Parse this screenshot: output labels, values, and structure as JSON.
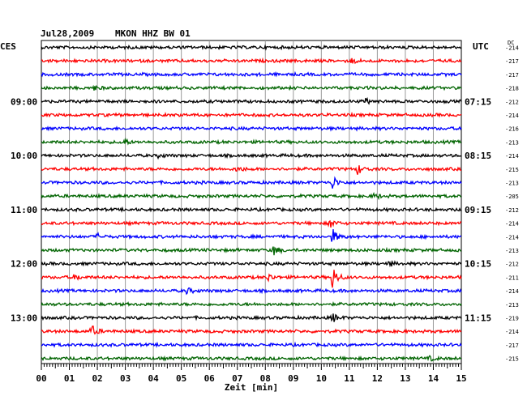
{
  "header": {
    "date": "Jul28,2009",
    "station": "MKON HHZ BW 01",
    "left_tz": "CES",
    "right_tz": "UTC",
    "dc_label": "DC"
  },
  "chart_data": {
    "type": "line",
    "title": "Jul28,2009   MKON HHZ BW 01",
    "xlabel": "Zeit [min]",
    "x_ticks": [
      "00",
      "01",
      "02",
      "03",
      "04",
      "05",
      "06",
      "07",
      "08",
      "09",
      "10",
      "11",
      "12",
      "13",
      "14",
      "15"
    ],
    "xlim": [
      0,
      15
    ],
    "grid": true,
    "trace_colors": [
      "#000000",
      "#ff0000",
      "#0000ff",
      "#006400"
    ],
    "left_time_labels": [
      {
        "row": 4,
        "text": "09:00"
      },
      {
        "row": 8,
        "text": "10:00"
      },
      {
        "row": 12,
        "text": "11:00"
      },
      {
        "row": 16,
        "text": "12:00"
      },
      {
        "row": 20,
        "text": "13:00"
      }
    ],
    "right_time_labels": [
      {
        "row": 4,
        "text": "07:15"
      },
      {
        "row": 8,
        "text": "08:15"
      },
      {
        "row": 12,
        "text": "09:15"
      },
      {
        "row": 16,
        "text": "10:15"
      },
      {
        "row": 20,
        "text": "11:15"
      }
    ],
    "dc_offsets": [
      -214,
      -217,
      -217,
      -218,
      -212,
      -214,
      -216,
      -213,
      -214,
      -215,
      -213,
      -205,
      -212,
      -214,
      -214,
      -213,
      -212,
      -211,
      -214,
      -213,
      -219,
      -214,
      -217,
      -215
    ],
    "events": [
      {
        "row": 1,
        "minute": 11.1,
        "amp": 0.5
      },
      {
        "row": 3,
        "minute": 1.9,
        "amp": 0.4
      },
      {
        "row": 4,
        "minute": 11.6,
        "amp": 0.5
      },
      {
        "row": 7,
        "minute": 2.9,
        "amp": 0.9
      },
      {
        "row": 8,
        "minute": 4.2,
        "amp": 0.4
      },
      {
        "row": 9,
        "minute": 7.0,
        "amp": 0.6
      },
      {
        "row": 9,
        "minute": 11.3,
        "amp": 1.0
      },
      {
        "row": 10,
        "minute": 10.4,
        "amp": 1.4
      },
      {
        "row": 11,
        "minute": 11.9,
        "amp": 0.6
      },
      {
        "row": 13,
        "minute": 10.3,
        "amp": 0.9
      },
      {
        "row": 14,
        "minute": 2.0,
        "amp": 0.5
      },
      {
        "row": 14,
        "minute": 10.4,
        "amp": 1.5
      },
      {
        "row": 15,
        "minute": 8.3,
        "amp": 1.0
      },
      {
        "row": 16,
        "minute": 12.4,
        "amp": 0.5
      },
      {
        "row": 17,
        "minute": 1.2,
        "amp": 0.6
      },
      {
        "row": 17,
        "minute": 8.1,
        "amp": 0.7
      },
      {
        "row": 17,
        "minute": 10.4,
        "amp": 2.5
      },
      {
        "row": 18,
        "minute": 5.2,
        "amp": 0.6
      },
      {
        "row": 20,
        "minute": 10.4,
        "amp": 0.9
      },
      {
        "row": 21,
        "minute": 1.8,
        "amp": 1.2
      },
      {
        "row": 23,
        "minute": 13.9,
        "amp": 0.4
      }
    ]
  }
}
